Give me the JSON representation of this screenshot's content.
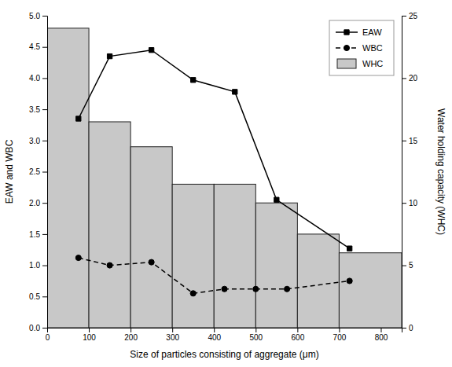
{
  "chart_data": {
    "type": "bar",
    "xlabel": "Size of particles consisting of aggregate (μm)",
    "ylabel": "EAW and WBC",
    "y2label": "Water holding capacity (WHC)",
    "xlim": [
      0,
      850
    ],
    "xticks": [
      0,
      100,
      200,
      300,
      400,
      500,
      600,
      700,
      800
    ],
    "ylim": [
      0,
      5.0
    ],
    "yticks": [
      {
        "value": 0.0,
        "label": "0.0"
      },
      0.5,
      {
        "value": 1.0,
        "label": "1.0"
      },
      1.5,
      {
        "value": 2.0,
        "label": "2.0"
      },
      2.5,
      {
        "value": 3.0,
        "label": "3.0"
      },
      3.5,
      {
        "value": 4.0,
        "label": "4.0"
      },
      4.5,
      {
        "value": 5.0,
        "label": "5.0"
      }
    ],
    "y2lim": [
      0,
      25
    ],
    "y2ticks": [
      0,
      5,
      10,
      15,
      20,
      25
    ],
    "grid": false,
    "legend": "upper right",
    "series": [
      {
        "name": "EAW",
        "type": "line",
        "color": "#000000",
        "marker": "square",
        "line_style": "solid",
        "x": [
          75,
          150,
          250,
          350,
          450,
          550,
          725
        ],
        "values": [
          3.35,
          4.35,
          4.45,
          3.97,
          3.78,
          2.05,
          1.27
        ]
      },
      {
        "name": "WBC",
        "type": "line",
        "color": "#000000",
        "marker": "circle",
        "line_style": "dashed",
        "x": [
          75,
          150,
          250,
          350,
          425,
          500,
          575,
          725
        ],
        "values": [
          1.12,
          1.0,
          1.05,
          0.55,
          0.62,
          0.62,
          0.62,
          0.75
        ]
      },
      {
        "name": "WHC",
        "type": "bar",
        "axis": "y2",
        "color": "#c8c8c8",
        "bins": [
          0,
          100,
          200,
          300,
          400,
          500,
          600,
          700,
          850
        ],
        "values": [
          24,
          16.5,
          14.5,
          11.5,
          11.5,
          10,
          7.5,
          6
        ]
      }
    ]
  }
}
